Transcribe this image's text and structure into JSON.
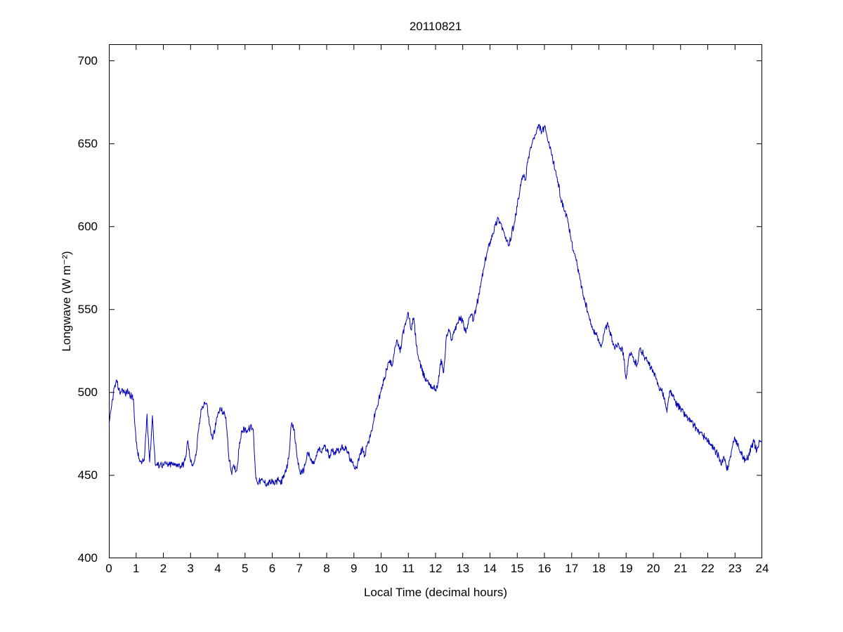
{
  "chart_data": {
    "type": "line",
    "title": "20110821",
    "xlabel": "Local Time (decimal hours)",
    "ylabel": "Longwave (W m⁻²)",
    "xlim": [
      0,
      24
    ],
    "ylim": [
      400,
      710
    ],
    "xticks": [
      0,
      1,
      2,
      3,
      4,
      5,
      6,
      7,
      8,
      9,
      10,
      11,
      12,
      13,
      14,
      15,
      16,
      17,
      18,
      19,
      20,
      21,
      22,
      23,
      24
    ],
    "yticks": [
      400,
      450,
      500,
      550,
      600,
      650,
      700
    ],
    "grid": false,
    "line_color": "#0000BB",
    "line_width": 1,
    "axis_color": "#000000",
    "noise_amplitude": 2.2,
    "x_start": 0,
    "x_step": 0.1,
    "values": [
      478,
      492,
      503,
      506,
      500,
      502,
      499,
      501,
      498,
      496,
      470,
      460,
      457,
      459,
      487,
      458,
      486,
      457,
      456,
      457,
      456,
      457,
      456,
      457,
      456,
      457,
      456,
      456,
      459,
      471,
      458,
      457,
      462,
      478,
      490,
      494,
      493,
      480,
      472,
      478,
      487,
      490,
      488,
      485,
      462,
      452,
      455,
      453,
      470,
      477,
      478,
      477,
      479,
      478,
      448,
      446,
      447,
      446,
      445,
      446,
      446,
      445,
      447,
      446,
      448,
      452,
      460,
      480,
      478,
      463,
      453,
      451,
      456,
      464,
      460,
      457,
      460,
      466,
      464,
      468,
      465,
      462,
      465,
      464,
      466,
      465,
      467,
      466,
      463,
      458,
      456,
      455,
      461,
      466,
      462,
      469,
      473,
      481,
      489,
      494,
      501,
      507,
      514,
      519,
      516,
      527,
      531,
      524,
      536,
      541,
      548,
      538,
      545,
      528,
      519,
      513,
      509,
      507,
      505,
      503,
      502,
      506,
      520,
      512,
      534,
      537,
      532,
      538,
      542,
      545,
      543,
      537,
      541,
      547,
      544,
      552,
      559,
      569,
      577,
      585,
      591,
      596,
      601,
      605,
      602,
      597,
      591,
      589,
      596,
      603,
      612,
      622,
      631,
      628,
      641,
      648,
      653,
      656,
      661,
      657,
      660,
      654,
      647,
      641,
      634,
      627,
      617,
      612,
      607,
      599,
      591,
      584,
      577,
      569,
      561,
      554,
      548,
      541,
      538,
      535,
      531,
      529,
      536,
      541,
      537,
      531,
      527,
      530,
      527,
      524,
      508,
      521,
      523,
      519,
      517,
      526,
      524,
      521,
      518,
      515,
      512,
      508,
      504,
      501,
      497,
      488,
      501,
      498,
      495,
      492,
      490,
      488,
      486,
      484,
      482,
      480,
      478,
      476,
      474,
      473,
      471,
      468,
      466,
      464,
      462,
      456,
      461,
      453,
      459,
      467,
      472,
      469,
      464,
      461,
      459,
      462,
      467,
      470,
      465,
      471,
      469
    ]
  }
}
